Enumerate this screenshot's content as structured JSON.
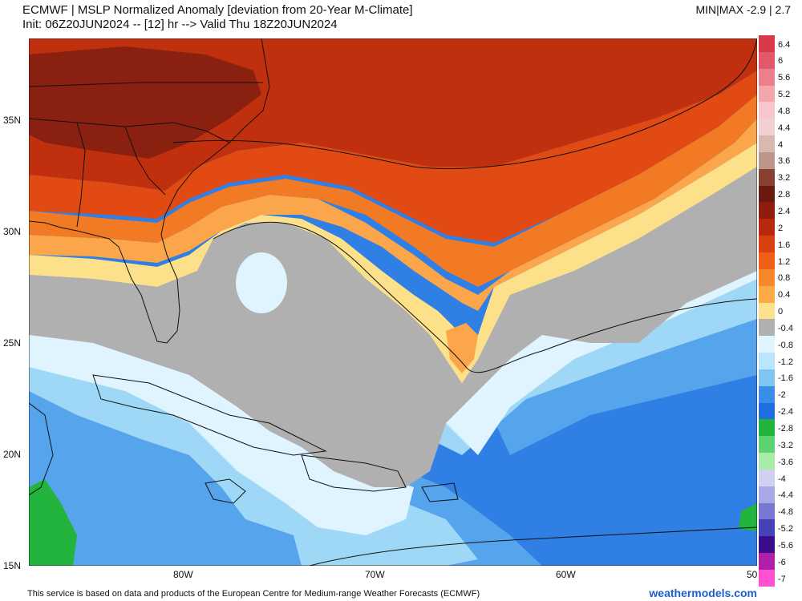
{
  "header": {
    "title": "ECMWF | MSLP Normalized Anomaly [deviation from 20-Year M-Climate]",
    "subtitle": "Init: 06Z20JUN2024 -- [12] hr --> Valid Thu 18Z20JUN2024",
    "minmax": "MIN|MAX -2.9 | 2.7"
  },
  "axes": {
    "lat_labels": [
      "35N",
      "30N",
      "25N",
      "20N",
      "15N"
    ],
    "lon_labels": [
      "80W",
      "70W",
      "60W",
      "50"
    ]
  },
  "colorbar": {
    "labels": [
      "6.4",
      "6",
      "5.6",
      "5.2",
      "4.8",
      "4.4",
      "4",
      "3.6",
      "3.2",
      "2.8",
      "2.4",
      "2",
      "1.6",
      "1.2",
      "0.8",
      "0.4",
      "0",
      "-0.4",
      "-0.8",
      "-1.2",
      "-1.6",
      "-2",
      "-2.4",
      "-2.8",
      "-3.2",
      "-3.6",
      "-4",
      "-4.4",
      "-4.8",
      "-5.2",
      "-5.6",
      "-6",
      "-7"
    ],
    "colors": [
      "#d93a4a",
      "#e25a6a",
      "#ec7f8c",
      "#f4a6ae",
      "#f8c6ca",
      "#f0d0d0",
      "#d8b8b0",
      "#bc9688",
      "#8a4030",
      "#6a1a10",
      "#8f1c0c",
      "#b82a0e",
      "#d8400f",
      "#ee6018",
      "#f8862a",
      "#fcaa46",
      "#fde08a",
      "#b0b0b0",
      "#dff4ff",
      "#b8e6fa",
      "#7ec6f2",
      "#3a8ee8",
      "#1f6fe0",
      "#21b43c",
      "#5cd270",
      "#a8eca8",
      "#d0d0f0",
      "#a8a8e6",
      "#7878d2",
      "#4444b8",
      "#3a0d8a",
      "#b01fa8",
      "#ff50d0"
    ]
  },
  "map": {
    "colors": {
      "deep_red": "#8a2010",
      "red": "#c0300e",
      "orange_red": "#e24a14",
      "orange": "#f37a24",
      "light_orange": "#fba64a",
      "pale_yellow": "#fde08a",
      "gray": "#b0b0b0",
      "light_cyan": "#dff4ff",
      "light_blue": "#9fd8f6",
      "mid_blue": "#55a4ec",
      "blue": "#2f7fe4",
      "green": "#22b43c",
      "coast": "#111111"
    }
  },
  "footer": {
    "attribution": "This service is based on data and products of the European Centre for Medium-range Weather Forecasts (ECMWF)",
    "brand": "weathermodels.com"
  }
}
